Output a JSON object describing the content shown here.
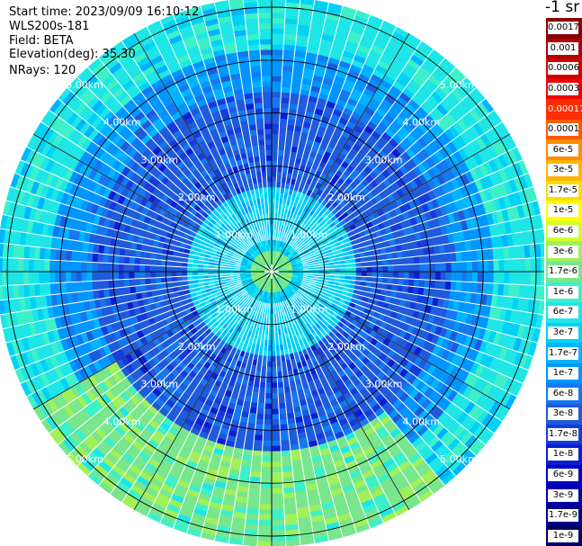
{
  "header": {
    "start_time": "Start time: 2023/09/09 16:10:12",
    "instrument": "WLS200s-181",
    "field": "Field: BETA",
    "elevation": "Elevation(deg): 35.30",
    "nrays": "NRays: 120"
  },
  "colorbar": {
    "units": "-1 sr",
    "levels": [
      {
        "label": "0.0017",
        "color": "#8b0000"
      },
      {
        "label": "0.001",
        "color": "#b00000"
      },
      {
        "label": "0.0006",
        "color": "#d40000"
      },
      {
        "label": "0.0003",
        "color": "#f00000"
      },
      {
        "label": "0.00017",
        "color": "#ff2d00"
      },
      {
        "label": "0.0001",
        "color": "#ff5a00"
      },
      {
        "label": "6e-5",
        "color": "#ff8c00"
      },
      {
        "label": "3e-5",
        "color": "#ffb400"
      },
      {
        "label": "1.7e-5",
        "color": "#ffdc00"
      },
      {
        "label": "1e-5",
        "color": "#ffff00"
      },
      {
        "label": "6e-6",
        "color": "#d2ff2a"
      },
      {
        "label": "3e-6",
        "color": "#a0f05a"
      },
      {
        "label": "1.7e-6",
        "color": "#78e68c"
      },
      {
        "label": "1e-6",
        "color": "#3cf0c8"
      },
      {
        "label": "6e-7",
        "color": "#1ee6e6"
      },
      {
        "label": "3e-7",
        "color": "#00d2f5"
      },
      {
        "label": "1.7e-7",
        "color": "#00b4ff"
      },
      {
        "label": "1e-7",
        "color": "#0096ff"
      },
      {
        "label": "6e-8",
        "color": "#1478f0"
      },
      {
        "label": "3e-8",
        "color": "#1e5adc"
      },
      {
        "label": "1.7e-8",
        "color": "#143cdc"
      },
      {
        "label": "1e-8",
        "color": "#0a1ed2"
      },
      {
        "label": "6e-9",
        "color": "#0000c8"
      },
      {
        "label": "3e-9",
        "color": "#0000aa"
      },
      {
        "label": "1.7e-9",
        "color": "#00008c"
      },
      {
        "label": "1e-9",
        "color": "#000064"
      }
    ]
  },
  "chart_data": {
    "type": "heatmap",
    "projection": "polar-ppi",
    "title": "",
    "range_rings_km": [
      1,
      2,
      3,
      4,
      5
    ],
    "range_labels": [
      "1.00km",
      "2.00km",
      "3.00km",
      "4.00km",
      "5.00km"
    ],
    "n_rays": 120,
    "spokes_deg": [
      0,
      30,
      60,
      90,
      120,
      150,
      180,
      210,
      240,
      270,
      300,
      330
    ],
    "colormap_levels": 26,
    "value_pattern_by_range_km": [
      {
        "from": 0.0,
        "to": 0.4,
        "value": "1.7e-6"
      },
      {
        "from": 0.4,
        "to": 1.6,
        "value": "3e-7"
      },
      {
        "from": 1.6,
        "to": 3.4,
        "value": "3e-8"
      },
      {
        "from": 3.4,
        "to": 4.2,
        "value": "1e-7"
      },
      {
        "from": 4.2,
        "to": 5.2,
        "value": "6e-7"
      }
    ],
    "enhanced_sector": {
      "from_deg": 140,
      "to_deg": 240,
      "from_km": 3.4,
      "to_km": 5.2,
      "value": "1.7e-6"
    }
  }
}
